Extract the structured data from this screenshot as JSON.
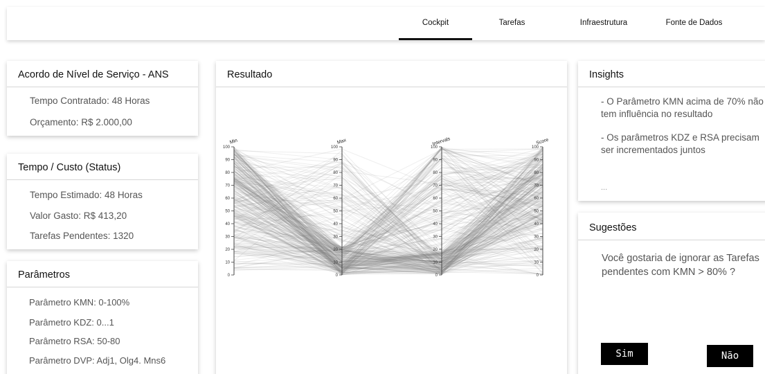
{
  "nav": {
    "tabs": [
      {
        "label": "Cockpit",
        "active": true
      },
      {
        "label": "Tarefas",
        "active": false
      },
      {
        "label": "Infraestrutura",
        "active": false
      },
      {
        "label": "Fonte de Dados",
        "active": false
      }
    ]
  },
  "sla": {
    "title": "Acordo de Nível de Serviço - ANS",
    "contracted_time": "Tempo Contratado: 48 Horas",
    "budget": "Orçamento: R$ 2.000,00"
  },
  "status": {
    "title": "Tempo / Custo (Status)",
    "estimated_time": "Tempo Estimado: 48 Horas",
    "spent": "Valor Gasto: R$ 413,20",
    "pending": "Tarefas Pendentes: 1320"
  },
  "params": {
    "title": "Parâmetros",
    "items": [
      "Parâmetro KMN: 0-100%",
      "Parâmetro KDZ: 0...1",
      "Parâmetro RSA: 50-80",
      "Parâmetro DVP: Adj1, Olg4. Mns6"
    ]
  },
  "result": {
    "title": "Resultado"
  },
  "insights": {
    "title": "Insights",
    "items": [
      "- O Parâmetro KMN acima de 70% não tem influência no resultado",
      "- Os parâmetros KDZ e RSA precisam ser incrementados juntos",
      "..."
    ]
  },
  "suggestions": {
    "title": "Sugestões",
    "text": "Você gostaria de ignorar as Tarefas pendentes com KMN > 80% ?",
    "yes_label": "Sim",
    "no_label": "Não"
  },
  "chart_data": {
    "type": "parallel-coordinates",
    "axes": [
      "Min",
      "Max",
      "Intervals",
      "Score"
    ],
    "ticks": [
      0,
      10,
      20,
      30,
      40,
      50,
      60,
      70,
      80,
      90,
      100
    ],
    "range": [
      0,
      100
    ],
    "line_color": "#7a7a7a"
  }
}
